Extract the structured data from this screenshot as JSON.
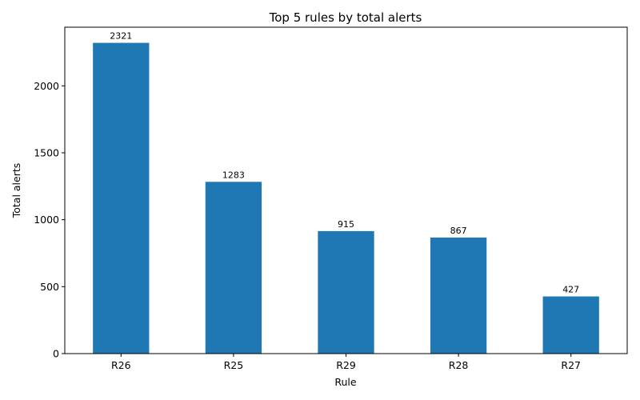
{
  "chart_data": {
    "type": "bar",
    "title": "Top 5 rules by total alerts",
    "xlabel": "Rule",
    "ylabel": "Total alerts",
    "categories": [
      "R26",
      "R25",
      "R29",
      "R28",
      "R27"
    ],
    "values": [
      2321,
      1283,
      915,
      867,
      427
    ],
    "ylim": [
      0,
      2438
    ],
    "yticks": [
      0,
      500,
      1000,
      1500,
      2000
    ],
    "bar_color": "#1f77b4",
    "grid": false,
    "legend": "none"
  }
}
